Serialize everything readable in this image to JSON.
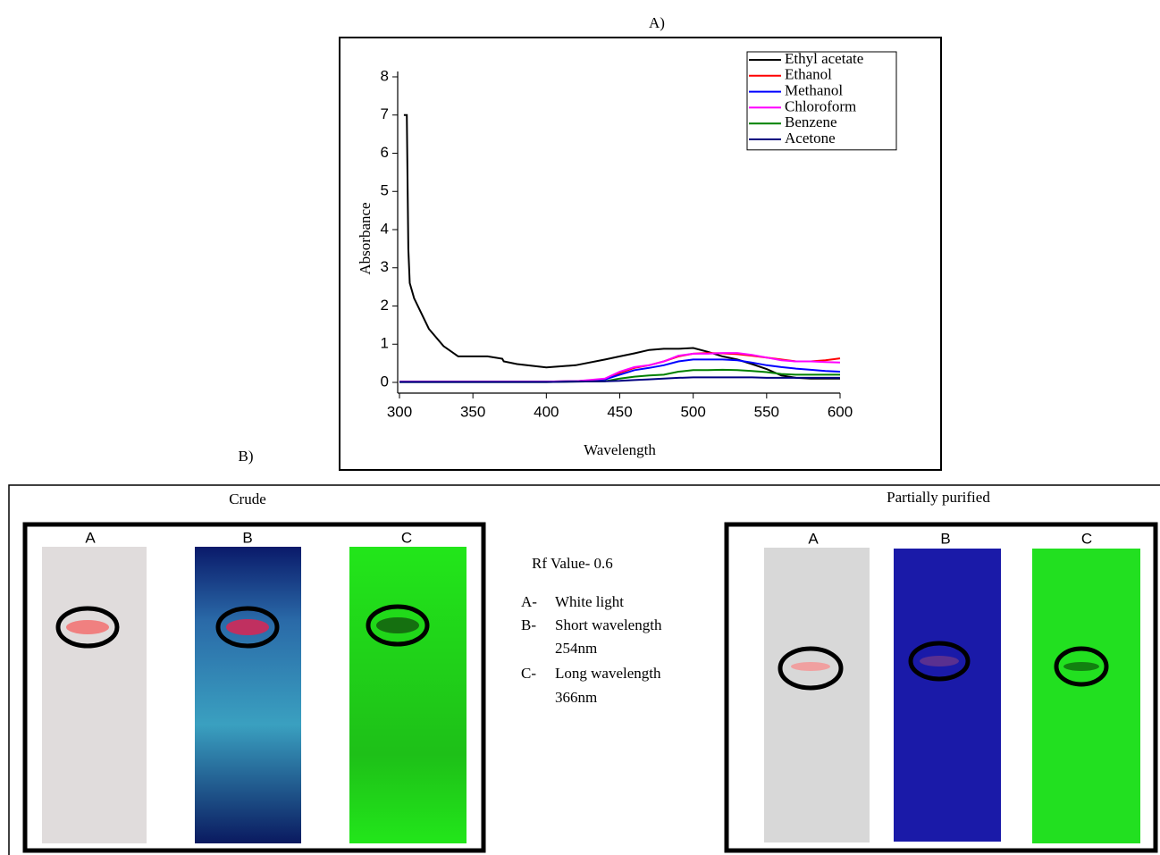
{
  "panel_a_label": "A)",
  "chart_data": {
    "type": "line",
    "x_label": "Wavelength",
    "y_label": "Absorbance",
    "x": [
      300,
      303,
      305,
      306,
      307,
      310,
      320,
      330,
      340,
      350,
      360,
      370,
      371,
      380,
      400,
      420,
      440,
      450,
      460,
      470,
      480,
      490,
      500,
      510,
      520,
      530,
      540,
      550,
      560,
      570,
      580,
      590,
      600
    ],
    "series": [
      {
        "name": "Ethyl acetate",
        "color": "#000000",
        "values": [
          null,
          7,
          7,
          3.5,
          2.6,
          2.2,
          1.4,
          0.95,
          0.68,
          0.68,
          0.68,
          0.62,
          0.55,
          0.48,
          0.39,
          0.45,
          0.6,
          0.68,
          0.76,
          0.85,
          0.88,
          0.88,
          0.9,
          0.8,
          0.68,
          0.6,
          0.48,
          0.35,
          0.18,
          0.12,
          0.1,
          0.1,
          0.1
        ]
      },
      {
        "name": "Ethanol",
        "color": "#ff0000",
        "values": [
          0.02,
          0.02,
          0.02,
          0.02,
          0.02,
          0.02,
          0.02,
          0.02,
          0.02,
          0.02,
          0.02,
          0.02,
          0.02,
          0.02,
          0.02,
          0.03,
          0.08,
          0.25,
          0.38,
          0.45,
          0.55,
          0.68,
          0.75,
          0.77,
          0.76,
          0.74,
          0.7,
          0.65,
          0.6,
          0.55,
          0.55,
          0.58,
          0.63
        ]
      },
      {
        "name": "Methanol",
        "color": "#0000ff",
        "values": [
          0.02,
          0.02,
          0.02,
          0.02,
          0.02,
          0.02,
          0.02,
          0.02,
          0.02,
          0.02,
          0.02,
          0.02,
          0.02,
          0.02,
          0.02,
          0.03,
          0.08,
          0.2,
          0.32,
          0.38,
          0.45,
          0.55,
          0.6,
          0.6,
          0.6,
          0.58,
          0.52,
          0.45,
          0.4,
          0.36,
          0.33,
          0.3,
          0.28
        ]
      },
      {
        "name": "Chloroform",
        "color": "#ff00ff",
        "values": [
          0.02,
          0.02,
          0.02,
          0.02,
          0.02,
          0.02,
          0.02,
          0.02,
          0.02,
          0.02,
          0.02,
          0.02,
          0.02,
          0.02,
          0.02,
          0.03,
          0.1,
          0.28,
          0.4,
          0.45,
          0.55,
          0.7,
          0.75,
          0.75,
          0.77,
          0.77,
          0.72,
          0.65,
          0.58,
          0.55,
          0.55,
          0.53,
          0.52
        ]
      },
      {
        "name": "Benzene",
        "color": "#008000",
        "values": [
          0.01,
          0.01,
          0.01,
          0.01,
          0.01,
          0.01,
          0.01,
          0.01,
          0.01,
          0.01,
          0.01,
          0.01,
          0.01,
          0.01,
          0.01,
          0.02,
          0.03,
          0.1,
          0.15,
          0.18,
          0.2,
          0.28,
          0.32,
          0.32,
          0.33,
          0.32,
          0.3,
          0.27,
          0.22,
          0.2,
          0.2,
          0.2,
          0.2
        ]
      },
      {
        "name": "Acetone",
        "color": "#000080",
        "values": [
          0.01,
          0.01,
          0.01,
          0.01,
          0.01,
          0.01,
          0.01,
          0.01,
          0.01,
          0.01,
          0.01,
          0.01,
          0.01,
          0.01,
          0.01,
          0.02,
          0.03,
          0.04,
          0.06,
          0.08,
          0.1,
          0.12,
          0.13,
          0.13,
          0.13,
          0.13,
          0.13,
          0.12,
          0.12,
          0.12,
          0.12,
          0.12,
          0.12
        ]
      }
    ],
    "xlim": [
      300,
      600
    ],
    "xticks": [
      300,
      350,
      400,
      450,
      500,
      550,
      600
    ],
    "ylim": [
      0,
      8
    ],
    "yticks": [
      0,
      1,
      2,
      3,
      4,
      5,
      6,
      7,
      8
    ],
    "legend_position": "upper right"
  },
  "panel_b": {
    "label": "B)",
    "crude": {
      "title": "Crude",
      "plate_labels": [
        "A",
        "B",
        "C"
      ]
    },
    "partially_purified": {
      "title": "Partially purified",
      "plate_labels": [
        "A",
        "B",
        "C"
      ]
    },
    "rf_value": "Rf Value- 0.6",
    "key": [
      {
        "letter": "A-",
        "lines": [
          "White light"
        ]
      },
      {
        "letter": "B-",
        "lines": [
          "Short wavelength",
          "254nm"
        ]
      },
      {
        "letter": "C-",
        "lines": [
          "Long wavelength",
          "366nm"
        ]
      }
    ]
  }
}
